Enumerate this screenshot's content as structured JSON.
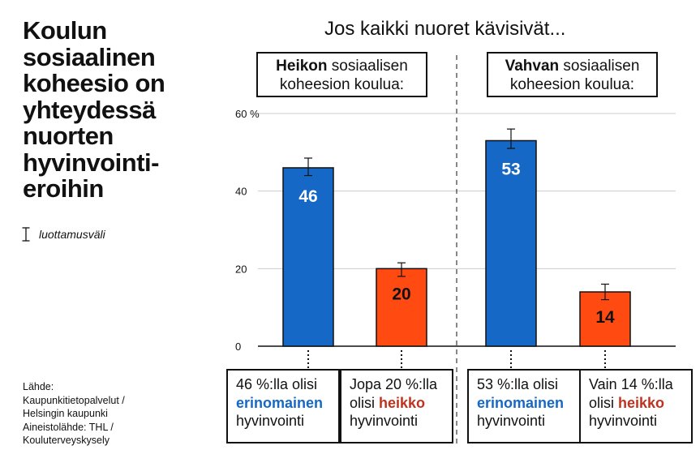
{
  "title_lines": [
    "Koulun",
    "sosiaalinen",
    "koheesio on",
    "yhteydessä",
    "nuorten",
    "hyvinvointi-",
    "eroihin"
  ],
  "legend": {
    "icon": "error-bar-icon",
    "label": "luottamusväli"
  },
  "source_lines": [
    "Lähde:",
    "Kaupunkitietopalvelut /",
    "Helsingin kaupunki",
    "Aineistolähde: THL /",
    "Kouluterveyskysely"
  ],
  "scenario_title": "Jos kaikki nuoret kävisivät...",
  "groups": [
    {
      "bold": "Heikon",
      "rest": " sosiaalisen",
      "line2": "koheesion koulua:"
    },
    {
      "bold": "Vahvan",
      "rest": " sosiaalisen",
      "line2": "koheesion koulua:"
    }
  ],
  "notes": [
    {
      "line1": "46 %:lla olisi",
      "highlight": "erinomainen",
      "highlight_type": "blue",
      "line3": "hyvinvointi"
    },
    {
      "line1": "Jopa 20 %:lla",
      "pre": "olisi ",
      "highlight": "heikko",
      "highlight_type": "red",
      "line3": "hyvinvointi"
    },
    {
      "line1": "53 %:lla olisi",
      "highlight": "erinomainen",
      "highlight_type": "blue",
      "line3": "hyvinvointi"
    },
    {
      "line1": "Vain 14 %:lla",
      "pre": "olisi ",
      "highlight": "heikko",
      "highlight_type": "red",
      "line3": "hyvinvointi"
    }
  ],
  "colors": {
    "blue": "#1568c6",
    "red": "#ff4b12",
    "grid": "#cccccc"
  },
  "chart_data": {
    "type": "bar",
    "categories": [
      "",
      "",
      "",
      ""
    ],
    "values": [
      46,
      20,
      53,
      14
    ],
    "data_labels": [
      "46",
      "20",
      "53",
      "14"
    ],
    "error_low": [
      44,
      18,
      51,
      12
    ],
    "error_high": [
      48.5,
      21.5,
      56,
      16
    ],
    "bar_colors": [
      "blue",
      "red",
      "blue",
      "red"
    ],
    "group_of_bar": [
      0,
      0,
      1,
      1
    ],
    "y_ticks": [
      0,
      20,
      40,
      60
    ],
    "y_tick_labels": [
      "0",
      "20",
      "40",
      "60 %"
    ],
    "ylim": [
      0,
      60
    ],
    "grid": true,
    "title": "",
    "xlabel": "",
    "ylabel": ""
  }
}
